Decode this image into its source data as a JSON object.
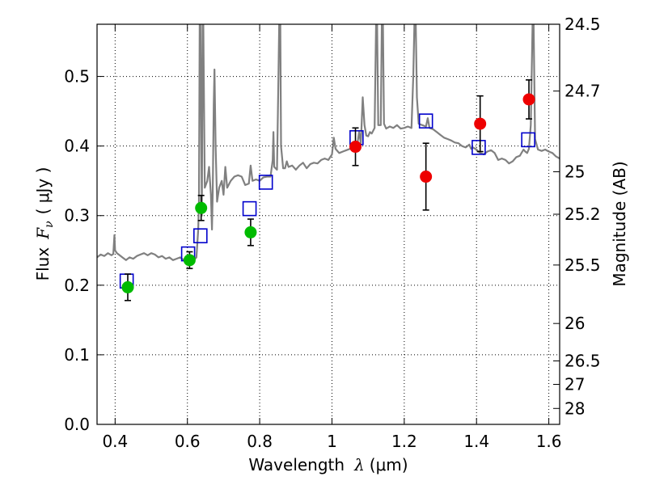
{
  "chart_data": {
    "type": "scatter",
    "title": "",
    "xlabel": {
      "text": "Wavelength",
      "symbol": "λ",
      "unit": "(μm)"
    },
    "ylabel": {
      "text": "Flux",
      "symbol": "F",
      "subscript": "ν",
      "unit": "( μJy )"
    },
    "y2label": "Magnitude (AB)",
    "xlim": [
      0.35,
      1.63
    ],
    "ylim": [
      0.0,
      0.575
    ],
    "grid": true,
    "x_ticks": [
      0.4,
      0.6,
      0.8,
      1.0,
      1.2,
      1.4,
      1.6
    ],
    "x_tick_labels": [
      "0.4",
      "0.6",
      "0.8",
      "1",
      "1.2",
      "1.4",
      "1.6"
    ],
    "y_ticks": [
      0.0,
      0.1,
      0.2,
      0.3,
      0.4,
      0.5
    ],
    "y_tick_labels": [
      "0.0",
      "0.1",
      "0.2",
      "0.3",
      "0.4",
      "0.5"
    ],
    "mag_ticks": [
      {
        "label": "24.5",
        "flux": 0.575
      },
      {
        "label": "24.7",
        "flux": 0.479
      },
      {
        "label": "25",
        "flux": 0.363
      },
      {
        "label": "25.2",
        "flux": 0.302
      },
      {
        "label": "25.5",
        "flux": 0.229
      },
      {
        "label": "26",
        "flux": 0.145
      },
      {
        "label": "26.5",
        "flux": 0.0912
      },
      {
        "label": "27",
        "flux": 0.0575
      },
      {
        "label": "28",
        "flux": 0.0229
      }
    ],
    "colors": {
      "spectrum": "#808080",
      "green_points": "#00bb00",
      "red_points": "#ee0000",
      "model_boxes": "#0000cc",
      "errorbars": "#000000",
      "grid": "#000000"
    },
    "series": [
      {
        "kind": "line",
        "points": [
          [
            0.35,
            0.24
          ],
          [
            0.36,
            0.244
          ],
          [
            0.37,
            0.242
          ],
          [
            0.38,
            0.246
          ],
          [
            0.39,
            0.243
          ],
          [
            0.395,
            0.245
          ],
          [
            0.398,
            0.272
          ],
          [
            0.4,
            0.25
          ],
          [
            0.405,
            0.246
          ],
          [
            0.41,
            0.244
          ],
          [
            0.42,
            0.24
          ],
          [
            0.43,
            0.236
          ],
          [
            0.44,
            0.24
          ],
          [
            0.45,
            0.238
          ],
          [
            0.46,
            0.242
          ],
          [
            0.47,
            0.244
          ],
          [
            0.48,
            0.246
          ],
          [
            0.49,
            0.243
          ],
          [
            0.5,
            0.246
          ],
          [
            0.51,
            0.244
          ],
          [
            0.52,
            0.24
          ],
          [
            0.53,
            0.242
          ],
          [
            0.54,
            0.238
          ],
          [
            0.55,
            0.24
          ],
          [
            0.56,
            0.236
          ],
          [
            0.57,
            0.238
          ],
          [
            0.58,
            0.24
          ],
          [
            0.59,
            0.236
          ],
          [
            0.6,
            0.24
          ],
          [
            0.61,
            0.238
          ],
          [
            0.618,
            0.236
          ],
          [
            0.625,
            0.24
          ],
          [
            0.63,
            0.28
          ],
          [
            0.632,
            0.32
          ],
          [
            0.634,
            0.575
          ],
          [
            0.636,
            0.575
          ],
          [
            0.64,
            0.3
          ],
          [
            0.642,
            0.575
          ],
          [
            0.644,
            0.575
          ],
          [
            0.648,
            0.34
          ],
          [
            0.655,
            0.35
          ],
          [
            0.66,
            0.37
          ],
          [
            0.665,
            0.33
          ],
          [
            0.668,
            0.28
          ],
          [
            0.67,
            0.33
          ],
          [
            0.673,
            0.46
          ],
          [
            0.675,
            0.51
          ],
          [
            0.678,
            0.4
          ],
          [
            0.682,
            0.32
          ],
          [
            0.688,
            0.34
          ],
          [
            0.695,
            0.35
          ],
          [
            0.7,
            0.33
          ],
          [
            0.705,
            0.37
          ],
          [
            0.71,
            0.34
          ],
          [
            0.72,
            0.35
          ],
          [
            0.73,
            0.356
          ],
          [
            0.74,
            0.358
          ],
          [
            0.75,
            0.356
          ],
          [
            0.76,
            0.344
          ],
          [
            0.77,
            0.346
          ],
          [
            0.775,
            0.372
          ],
          [
            0.78,
            0.35
          ],
          [
            0.79,
            0.352
          ],
          [
            0.8,
            0.35
          ],
          [
            0.81,
            0.355
          ],
          [
            0.82,
            0.356
          ],
          [
            0.83,
            0.356
          ],
          [
            0.836,
            0.38
          ],
          [
            0.838,
            0.42
          ],
          [
            0.84,
            0.37
          ],
          [
            0.848,
            0.366
          ],
          [
            0.852,
            0.5
          ],
          [
            0.854,
            0.575
          ],
          [
            0.857,
            0.575
          ],
          [
            0.859,
            0.4
          ],
          [
            0.865,
            0.368
          ],
          [
            0.87,
            0.368
          ],
          [
            0.875,
            0.378
          ],
          [
            0.88,
            0.37
          ],
          [
            0.89,
            0.372
          ],
          [
            0.9,
            0.366
          ],
          [
            0.91,
            0.372
          ],
          [
            0.92,
            0.376
          ],
          [
            0.93,
            0.368
          ],
          [
            0.94,
            0.374
          ],
          [
            0.95,
            0.376
          ],
          [
            0.96,
            0.375
          ],
          [
            0.97,
            0.38
          ],
          [
            0.98,
            0.382
          ],
          [
            0.99,
            0.38
          ],
          [
            1.0,
            0.388
          ],
          [
            1.005,
            0.412
          ],
          [
            1.01,
            0.396
          ],
          [
            1.02,
            0.39
          ],
          [
            1.03,
            0.392
          ],
          [
            1.04,
            0.394
          ],
          [
            1.05,
            0.396
          ],
          [
            1.06,
            0.4
          ],
          [
            1.07,
            0.402
          ],
          [
            1.075,
            0.42
          ],
          [
            1.08,
            0.404
          ],
          [
            1.085,
            0.47
          ],
          [
            1.09,
            0.43
          ],
          [
            1.095,
            0.415
          ],
          [
            1.1,
            0.414
          ],
          [
            1.105,
            0.42
          ],
          [
            1.11,
            0.418
          ],
          [
            1.118,
            0.426
          ],
          [
            1.122,
            0.575
          ],
          [
            1.125,
            0.575
          ],
          [
            1.128,
            0.43
          ],
          [
            1.135,
            0.43
          ],
          [
            1.138,
            0.575
          ],
          [
            1.141,
            0.575
          ],
          [
            1.144,
            0.432
          ],
          [
            1.15,
            0.425
          ],
          [
            1.16,
            0.428
          ],
          [
            1.17,
            0.426
          ],
          [
            1.18,
            0.43
          ],
          [
            1.19,
            0.425
          ],
          [
            1.2,
            0.426
          ],
          [
            1.21,
            0.428
          ],
          [
            1.22,
            0.426
          ],
          [
            1.225,
            0.5
          ],
          [
            1.228,
            0.575
          ],
          [
            1.232,
            0.575
          ],
          [
            1.235,
            0.47
          ],
          [
            1.24,
            0.432
          ],
          [
            1.25,
            0.43
          ],
          [
            1.26,
            0.428
          ],
          [
            1.265,
            0.44
          ],
          [
            1.27,
            0.426
          ],
          [
            1.28,
            0.424
          ],
          [
            1.29,
            0.42
          ],
          [
            1.3,
            0.416
          ],
          [
            1.31,
            0.412
          ],
          [
            1.32,
            0.41
          ],
          [
            1.33,
            0.408
          ],
          [
            1.34,
            0.405
          ],
          [
            1.35,
            0.404
          ],
          [
            1.36,
            0.4
          ],
          [
            1.37,
            0.398
          ],
          [
            1.38,
            0.402
          ],
          [
            1.385,
            0.396
          ],
          [
            1.39,
            0.398
          ],
          [
            1.4,
            0.395
          ],
          [
            1.41,
            0.39
          ],
          [
            1.42,
            0.388
          ],
          [
            1.43,
            0.392
          ],
          [
            1.44,
            0.394
          ],
          [
            1.45,
            0.39
          ],
          [
            1.46,
            0.38
          ],
          [
            1.47,
            0.382
          ],
          [
            1.48,
            0.38
          ],
          [
            1.49,
            0.375
          ],
          [
            1.5,
            0.378
          ],
          [
            1.51,
            0.384
          ],
          [
            1.52,
            0.386
          ],
          [
            1.53,
            0.395
          ],
          [
            1.535,
            0.392
          ],
          [
            1.54,
            0.39
          ],
          [
            1.545,
            0.396
          ],
          [
            1.55,
            0.43
          ],
          [
            1.555,
            0.575
          ],
          [
            1.558,
            0.575
          ],
          [
            1.562,
            0.41
          ],
          [
            1.57,
            0.395
          ],
          [
            1.58,
            0.393
          ],
          [
            1.59,
            0.395
          ],
          [
            1.6,
            0.392
          ],
          [
            1.61,
            0.39
          ],
          [
            1.62,
            0.385
          ],
          [
            1.63,
            0.382
          ]
        ]
      },
      {
        "kind": "points",
        "points": [
          {
            "x": 0.435,
            "y": 0.197,
            "err": 0.019
          },
          {
            "x": 0.606,
            "y": 0.236,
            "err": 0.012
          },
          {
            "x": 0.638,
            "y": 0.311,
            "err": 0.018
          },
          {
            "x": 0.775,
            "y": 0.276,
            "err": 0.019
          }
        ]
      },
      {
        "kind": "points",
        "points": [
          {
            "x": 1.065,
            "y": 0.399,
            "err": 0.027
          },
          {
            "x": 1.26,
            "y": 0.356,
            "err": 0.048
          },
          {
            "x": 1.41,
            "y": 0.432,
            "err": 0.04
          },
          {
            "x": 1.545,
            "y": 0.467,
            "err": 0.028
          }
        ]
      },
      {
        "kind": "boxes",
        "points": [
          {
            "x": 0.432,
            "y": 0.206
          },
          {
            "x": 0.602,
            "y": 0.245
          },
          {
            "x": 0.636,
            "y": 0.271
          },
          {
            "x": 0.772,
            "y": 0.31
          },
          {
            "x": 0.817,
            "y": 0.348
          },
          {
            "x": 1.068,
            "y": 0.412
          },
          {
            "x": 1.26,
            "y": 0.436
          },
          {
            "x": 1.406,
            "y": 0.398
          },
          {
            "x": 1.543,
            "y": 0.409
          }
        ]
      }
    ]
  }
}
